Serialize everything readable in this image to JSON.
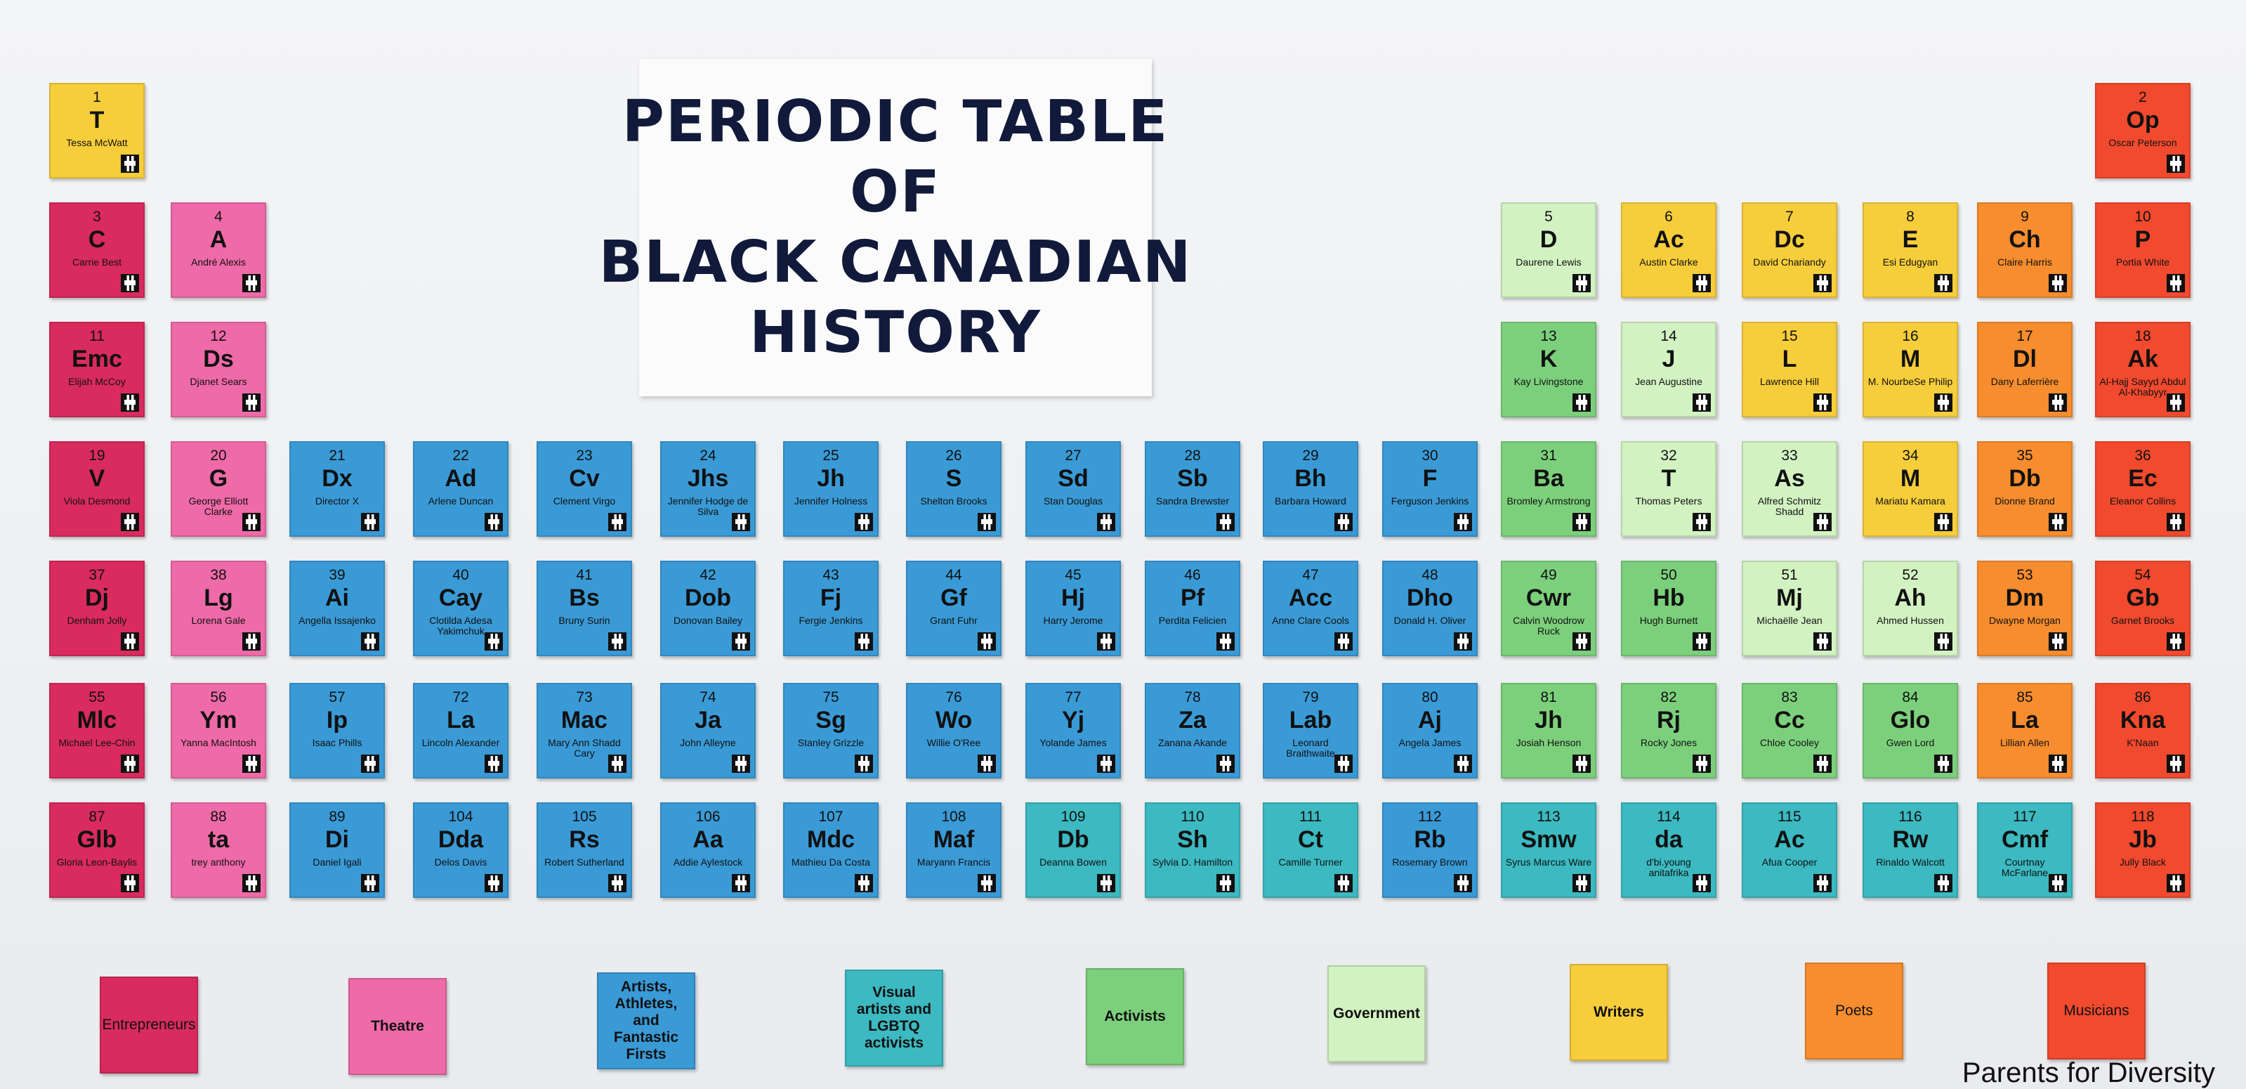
{
  "title": {
    "line1": "PERIODIC TABLE",
    "line2": "OF",
    "line3": "BLACK CANADIAN",
    "line4": "HISTORY"
  },
  "credit": "Parents for Diversity",
  "colors": {
    "entrepreneurs": "#d92b5d",
    "theatre": "#ef6aa8",
    "artists": "#3a9ad6",
    "visual": "#3cb9c1",
    "activists": "#7cd07c",
    "government": "#d2f2c2",
    "writers": "#f6cd3b",
    "poets": "#f78d2e",
    "musicians": "#f24a2e"
  },
  "legend": [
    {
      "label": "Entrepreneurs",
      "category": "entrepreneurs"
    },
    {
      "label": "Theatre",
      "category": "theatre"
    },
    {
      "label": "Artists, Athletes, and Fantastic Firsts",
      "category": "artists"
    },
    {
      "label": "Visual artists and LGBTQ activists",
      "category": "visual"
    },
    {
      "label": "Activists",
      "category": "activists"
    },
    {
      "label": "Government",
      "category": "government"
    },
    {
      "label": "Writers",
      "category": "writers"
    },
    {
      "label": "Poets",
      "category": "poets"
    },
    {
      "label": "Musicians",
      "category": "musicians"
    }
  ],
  "elements": [
    {
      "n": "1",
      "s": "T",
      "name": "Tessa McWatt",
      "cat": "writers",
      "row": 0,
      "col": 0
    },
    {
      "n": "2",
      "s": "Op",
      "name": "Oscar Peterson",
      "cat": "musicians",
      "row": 0,
      "col": 17
    },
    {
      "n": "3",
      "s": "C",
      "name": "Carrie Best",
      "cat": "entrepreneurs",
      "row": 1,
      "col": 0
    },
    {
      "n": "4",
      "s": "A",
      "name": "André Alexis",
      "cat": "theatre",
      "row": 1,
      "col": 1
    },
    {
      "n": "5",
      "s": "D",
      "name": "Daurene Lewis",
      "cat": "government",
      "row": 1,
      "col": 12
    },
    {
      "n": "6",
      "s": "Ac",
      "name": "Austin Clarke",
      "cat": "writers",
      "row": 1,
      "col": 13
    },
    {
      "n": "7",
      "s": "Dc",
      "name": "David Chariandy",
      "cat": "writers",
      "row": 1,
      "col": 14
    },
    {
      "n": "8",
      "s": "E",
      "name": "Esi Edugyan",
      "cat": "writers",
      "row": 1,
      "col": 15
    },
    {
      "n": "9",
      "s": "Ch",
      "name": "Claire Harris",
      "cat": "poets",
      "row": 1,
      "col": 16
    },
    {
      "n": "10",
      "s": "P",
      "name": "Portia White",
      "cat": "musicians",
      "row": 1,
      "col": 17
    },
    {
      "n": "11",
      "s": "Emc",
      "name": "Elijah McCoy",
      "cat": "entrepreneurs",
      "row": 2,
      "col": 0
    },
    {
      "n": "12",
      "s": "Ds",
      "name": "Djanet Sears",
      "cat": "theatre",
      "row": 2,
      "col": 1
    },
    {
      "n": "13",
      "s": "K",
      "name": "Kay Livingstone",
      "cat": "activists",
      "row": 2,
      "col": 12
    },
    {
      "n": "14",
      "s": "J",
      "name": "Jean Augustine",
      "cat": "government",
      "row": 2,
      "col": 13
    },
    {
      "n": "15",
      "s": "L",
      "name": "Lawrence Hill",
      "cat": "writers",
      "row": 2,
      "col": 14
    },
    {
      "n": "16",
      "s": "M",
      "name": "M. NourbeSe Philip",
      "cat": "writers",
      "row": 2,
      "col": 15
    },
    {
      "n": "17",
      "s": "Dl",
      "name": "Dany Laferrière",
      "cat": "poets",
      "row": 2,
      "col": 16
    },
    {
      "n": "18",
      "s": "Ak",
      "name": "Al-Hajj Sayyd Abdul Al-Khabyyr",
      "cat": "musicians",
      "row": 2,
      "col": 17
    },
    {
      "n": "19",
      "s": "V",
      "name": "Viola Desmond",
      "cat": "entrepreneurs",
      "row": 3,
      "col": 0
    },
    {
      "n": "20",
      "s": "G",
      "name": "George Elliott Clarke",
      "cat": "theatre",
      "row": 3,
      "col": 1
    },
    {
      "n": "21",
      "s": "Dx",
      "name": "Director X",
      "cat": "artists",
      "row": 3,
      "col": 2
    },
    {
      "n": "22",
      "s": "Ad",
      "name": "Arlene Duncan",
      "cat": "artists",
      "row": 3,
      "col": 3
    },
    {
      "n": "23",
      "s": "Cv",
      "name": "Clement Virgo",
      "cat": "artists",
      "row": 3,
      "col": 4
    },
    {
      "n": "24",
      "s": "Jhs",
      "name": "Jennifer Hodge de Silva",
      "cat": "artists",
      "row": 3,
      "col": 5
    },
    {
      "n": "25",
      "s": "Jh",
      "name": "Jennifer Holness",
      "cat": "artists",
      "row": 3,
      "col": 6
    },
    {
      "n": "26",
      "s": "S",
      "name": "Shelton Brooks",
      "cat": "artists",
      "row": 3,
      "col": 7
    },
    {
      "n": "27",
      "s": "Sd",
      "name": "Stan Douglas",
      "cat": "artists",
      "row": 3,
      "col": 8
    },
    {
      "n": "28",
      "s": "Sb",
      "name": "Sandra Brewster",
      "cat": "artists",
      "row": 3,
      "col": 9
    },
    {
      "n": "29",
      "s": "Bh",
      "name": "Barbara Howard",
      "cat": "artists",
      "row": 3,
      "col": 10
    },
    {
      "n": "30",
      "s": "F",
      "name": "Ferguson Jenkins",
      "cat": "artists",
      "row": 3,
      "col": 11
    },
    {
      "n": "31",
      "s": "Ba",
      "name": "Bromley Armstrong",
      "cat": "activists",
      "row": 3,
      "col": 12
    },
    {
      "n": "32",
      "s": "T",
      "name": "Thomas Peters",
      "cat": "government",
      "row": 3,
      "col": 13
    },
    {
      "n": "33",
      "s": "As",
      "name": "Alfred Schmitz Shadd",
      "cat": "government",
      "row": 3,
      "col": 14
    },
    {
      "n": "34",
      "s": "M",
      "name": "Mariatu Kamara",
      "cat": "writers",
      "row": 3,
      "col": 15
    },
    {
      "n": "35",
      "s": "Db",
      "name": "Dionne Brand",
      "cat": "poets",
      "row": 3,
      "col": 16
    },
    {
      "n": "36",
      "s": "Ec",
      "name": "Eleanor Collins",
      "cat": "musicians",
      "row": 3,
      "col": 17
    },
    {
      "n": "37",
      "s": "Dj",
      "name": "Denham Jolly",
      "cat": "entrepreneurs",
      "row": 4,
      "col": 0
    },
    {
      "n": "38",
      "s": "Lg",
      "name": "Lorena Gale",
      "cat": "theatre",
      "row": 4,
      "col": 1
    },
    {
      "n": "39",
      "s": "Ai",
      "name": "Angella Issajenko",
      "cat": "artists",
      "row": 4,
      "col": 2
    },
    {
      "n": "40",
      "s": "Cay",
      "name": "Clotilda Adesa Yakimchuk",
      "cat": "artists",
      "row": 4,
      "col": 3
    },
    {
      "n": "41",
      "s": "Bs",
      "name": "Bruny Surin",
      "cat": "artists",
      "row": 4,
      "col": 4
    },
    {
      "n": "42",
      "s": "Dob",
      "name": "Donovan Bailey",
      "cat": "artists",
      "row": 4,
      "col": 5
    },
    {
      "n": "43",
      "s": "Fj",
      "name": "Fergie Jenkins",
      "cat": "artists",
      "row": 4,
      "col": 6
    },
    {
      "n": "44",
      "s": "Gf",
      "name": "Grant Fuhr",
      "cat": "artists",
      "row": 4,
      "col": 7
    },
    {
      "n": "45",
      "s": "Hj",
      "name": "Harry Jerome",
      "cat": "artists",
      "row": 4,
      "col": 8
    },
    {
      "n": "46",
      "s": "Pf",
      "name": "Perdita Felicien",
      "cat": "artists",
      "row": 4,
      "col": 9
    },
    {
      "n": "47",
      "s": "Acc",
      "name": "Anne Clare Cools",
      "cat": "artists",
      "row": 4,
      "col": 10
    },
    {
      "n": "48",
      "s": "Dho",
      "name": "Donald H. Oliver",
      "cat": "artists",
      "row": 4,
      "col": 11
    },
    {
      "n": "49",
      "s": "Cwr",
      "name": "Calvin Woodrow Ruck",
      "cat": "activists",
      "row": 4,
      "col": 12
    },
    {
      "n": "50",
      "s": "Hb",
      "name": "Hugh Burnett",
      "cat": "activists",
      "row": 4,
      "col": 13
    },
    {
      "n": "51",
      "s": "Mj",
      "name": "Michaëlle Jean",
      "cat": "government",
      "row": 4,
      "col": 14
    },
    {
      "n": "52",
      "s": "Ah",
      "name": "Ahmed Hussen",
      "cat": "government",
      "row": 4,
      "col": 15
    },
    {
      "n": "53",
      "s": "Dm",
      "name": "Dwayne Morgan",
      "cat": "poets",
      "row": 4,
      "col": 16
    },
    {
      "n": "54",
      "s": "Gb",
      "name": "Garnet Brooks",
      "cat": "musicians",
      "row": 4,
      "col": 17
    },
    {
      "n": "55",
      "s": "Mlc",
      "name": "Michael Lee-Chin",
      "cat": "entrepreneurs",
      "row": 5,
      "col": 0
    },
    {
      "n": "56",
      "s": "Ym",
      "name": "Yanna MacIntosh",
      "cat": "theatre",
      "row": 5,
      "col": 1
    },
    {
      "n": "57",
      "s": "Ip",
      "name": "Isaac Phills",
      "cat": "artists",
      "row": 5,
      "col": 2
    },
    {
      "n": "72",
      "s": "La",
      "name": "Lincoln Alexander",
      "cat": "artists",
      "row": 5,
      "col": 3
    },
    {
      "n": "73",
      "s": "Mac",
      "name": "Mary Ann Shadd Cary",
      "cat": "artists",
      "row": 5,
      "col": 4
    },
    {
      "n": "74",
      "s": "Ja",
      "name": "John Alleyne",
      "cat": "artists",
      "row": 5,
      "col": 5
    },
    {
      "n": "75",
      "s": "Sg",
      "name": "Stanley Grizzle",
      "cat": "artists",
      "row": 5,
      "col": 6
    },
    {
      "n": "76",
      "s": "Wo",
      "name": "Willie O'Ree",
      "cat": "artists",
      "row": 5,
      "col": 7
    },
    {
      "n": "77",
      "s": "Yj",
      "name": "Yolande James",
      "cat": "artists",
      "row": 5,
      "col": 8
    },
    {
      "n": "78",
      "s": "Za",
      "name": "Zanana Akande",
      "cat": "artists",
      "row": 5,
      "col": 9
    },
    {
      "n": "79",
      "s": "Lab",
      "name": "Leonard Braithwaite",
      "cat": "artists",
      "row": 5,
      "col": 10
    },
    {
      "n": "80",
      "s": "Aj",
      "name": "Angela James",
      "cat": "artists",
      "row": 5,
      "col": 11
    },
    {
      "n": "81",
      "s": "Jh",
      "name": "Josiah Henson",
      "cat": "activists",
      "row": 5,
      "col": 12
    },
    {
      "n": "82",
      "s": "Rj",
      "name": "Rocky Jones",
      "cat": "activists",
      "row": 5,
      "col": 13
    },
    {
      "n": "83",
      "s": "Cc",
      "name": "Chloe Cooley",
      "cat": "activists",
      "row": 5,
      "col": 14
    },
    {
      "n": "84",
      "s": "Glo",
      "name": "Gwen Lord",
      "cat": "activists",
      "row": 5,
      "col": 15
    },
    {
      "n": "85",
      "s": "La",
      "name": "Lillian Allen",
      "cat": "poets",
      "row": 5,
      "col": 16
    },
    {
      "n": "86",
      "s": "Kna",
      "name": "K'Naan",
      "cat": "musicians",
      "row": 5,
      "col": 17
    },
    {
      "n": "87",
      "s": "Glb",
      "name": "Gloria Leon-Baylis",
      "cat": "entrepreneurs",
      "row": 6,
      "col": 0
    },
    {
      "n": "88",
      "s": "ta",
      "name": "trey anthony",
      "cat": "theatre",
      "row": 6,
      "col": 1
    },
    {
      "n": "89",
      "s": "Di",
      "name": "Daniel Igali",
      "cat": "artists",
      "row": 6,
      "col": 2
    },
    {
      "n": "104",
      "s": "Dda",
      "name": "Delos Davis",
      "cat": "artists",
      "row": 6,
      "col": 3
    },
    {
      "n": "105",
      "s": "Rs",
      "name": "Robert Sutherland",
      "cat": "artists",
      "row": 6,
      "col": 4
    },
    {
      "n": "106",
      "s": "Aa",
      "name": "Addie Aylestock",
      "cat": "artists",
      "row": 6,
      "col": 5
    },
    {
      "n": "107",
      "s": "Mdc",
      "name": "Mathieu Da Costa",
      "cat": "artists",
      "row": 6,
      "col": 6
    },
    {
      "n": "108",
      "s": "Maf",
      "name": "Maryann Francis",
      "cat": "artists",
      "row": 6,
      "col": 7
    },
    {
      "n": "109",
      "s": "Db",
      "name": "Deanna Bowen",
      "cat": "visual",
      "row": 6,
      "col": 8
    },
    {
      "n": "110",
      "s": "Sh",
      "name": "Sylvia D. Hamilton",
      "cat": "visual",
      "row": 6,
      "col": 9
    },
    {
      "n": "111",
      "s": "Ct",
      "name": "Camille Turner",
      "cat": "visual",
      "row": 6,
      "col": 10
    },
    {
      "n": "112",
      "s": "Rb",
      "name": "Rosemary Brown",
      "cat": "artists",
      "row": 6,
      "col": 11
    },
    {
      "n": "113",
      "s": "Smw",
      "name": "Syrus Marcus Ware",
      "cat": "visual",
      "row": 6,
      "col": 12
    },
    {
      "n": "114",
      "s": "da",
      "name": "d'bi.young anitafrika",
      "cat": "visual",
      "row": 6,
      "col": 13
    },
    {
      "n": "115",
      "s": "Ac",
      "name": "Afua Cooper",
      "cat": "visual",
      "row": 6,
      "col": 14
    },
    {
      "n": "116",
      "s": "Rw",
      "name": "Rinaldo Walcott",
      "cat": "visual",
      "row": 6,
      "col": 15
    },
    {
      "n": "117",
      "s": "Cmf",
      "name": "Courtnay McFarlane",
      "cat": "visual",
      "row": 6,
      "col": 16
    },
    {
      "n": "118",
      "s": "Jb",
      "name": "Jully Black",
      "cat": "musicians",
      "row": 6,
      "col": 17
    }
  ]
}
